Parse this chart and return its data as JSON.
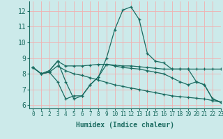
{
  "xlabel": "Humidex (Indice chaleur)",
  "xlim": [
    -0.5,
    23
  ],
  "ylim": [
    5.8,
    12.6
  ],
  "yticks": [
    6,
    7,
    8,
    9,
    10,
    11,
    12
  ],
  "xticks": [
    0,
    1,
    2,
    3,
    4,
    5,
    6,
    7,
    8,
    9,
    10,
    11,
    12,
    13,
    14,
    15,
    16,
    17,
    18,
    19,
    20,
    21,
    22,
    23
  ],
  "background_color": "#cceaea",
  "grid_color": "#f0b0b0",
  "line_color": "#1a6b60",
  "lines": [
    {
      "x": [
        0,
        1,
        2,
        3,
        4,
        5,
        6,
        7,
        8,
        9,
        10,
        11,
        12,
        13,
        14,
        15,
        16,
        17,
        18,
        19,
        20,
        21,
        22,
        23
      ],
      "y": [
        8.4,
        8.0,
        8.2,
        8.8,
        7.5,
        6.4,
        6.6,
        7.3,
        7.8,
        9.0,
        10.8,
        12.05,
        12.25,
        11.45,
        9.3,
        8.8,
        8.7,
        8.3,
        8.3,
        8.3,
        7.5,
        7.3,
        6.4,
        6.2
      ]
    },
    {
      "x": [
        0,
        1,
        2,
        3,
        4,
        5,
        6,
        7,
        8,
        9,
        10,
        11,
        12,
        13,
        14,
        15,
        16,
        17,
        18,
        19,
        20,
        21,
        22,
        23
      ],
      "y": [
        8.4,
        8.0,
        8.2,
        8.8,
        8.5,
        8.5,
        8.5,
        8.55,
        8.6,
        8.6,
        8.55,
        8.5,
        8.5,
        8.45,
        8.4,
        8.35,
        8.3,
        8.3,
        8.3,
        8.3,
        8.3,
        8.3,
        8.3,
        8.3
      ]
    },
    {
      "x": [
        0,
        1,
        2,
        3,
        4,
        5,
        6,
        7,
        8,
        9,
        10,
        11,
        12,
        13,
        14,
        15,
        16,
        17,
        18,
        19,
        20,
        21,
        22,
        23
      ],
      "y": [
        8.4,
        8.0,
        8.1,
        8.5,
        8.2,
        8.0,
        7.9,
        7.75,
        7.6,
        7.45,
        7.3,
        7.2,
        7.1,
        7.0,
        6.9,
        6.8,
        6.7,
        6.6,
        6.55,
        6.5,
        6.45,
        6.4,
        6.3,
        6.2
      ]
    },
    {
      "x": [
        0,
        1,
        2,
        3,
        4,
        5,
        6,
        7,
        8,
        9,
        10,
        11,
        12,
        13,
        14,
        15,
        16,
        17,
        18,
        19,
        20,
        21,
        22,
        23
      ],
      "y": [
        8.4,
        8.0,
        8.1,
        7.5,
        6.4,
        6.6,
        6.6,
        7.3,
        7.8,
        8.6,
        8.5,
        8.4,
        8.35,
        8.3,
        8.2,
        8.1,
        8.0,
        7.75,
        7.5,
        7.3,
        7.5,
        7.3,
        6.4,
        6.2
      ]
    }
  ]
}
